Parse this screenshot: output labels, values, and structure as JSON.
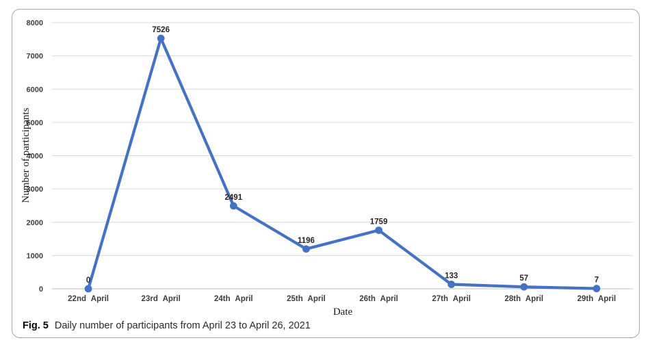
{
  "figure": {
    "caption_label": "Fig. 5",
    "caption_text": "Daily number of participants from April 23 to April 26, 2021"
  },
  "chart_data": {
    "type": "line",
    "title": "",
    "categories": [
      "22nd April",
      "23rd April",
      "24th April",
      "25th April",
      "26th April",
      "27th April",
      "28th April",
      "29th April"
    ],
    "values": [
      0,
      7526,
      2491,
      1196,
      1759,
      133,
      57,
      7
    ],
    "data_labels": [
      "0",
      "7526",
      "2491",
      "1196",
      "1759",
      "133",
      "57",
      "7"
    ],
    "xlabel": "Date",
    "ylabel": "Number of participants",
    "ylim": [
      0,
      8000
    ],
    "yticks": [
      0,
      1000,
      2000,
      3000,
      4000,
      5000,
      6000,
      7000,
      8000
    ],
    "grid": true,
    "legend_position": "none",
    "series_color": "#4472C4",
    "gridline_color": "#d9d9d9",
    "axis_line_color": "#bfbfbf"
  }
}
